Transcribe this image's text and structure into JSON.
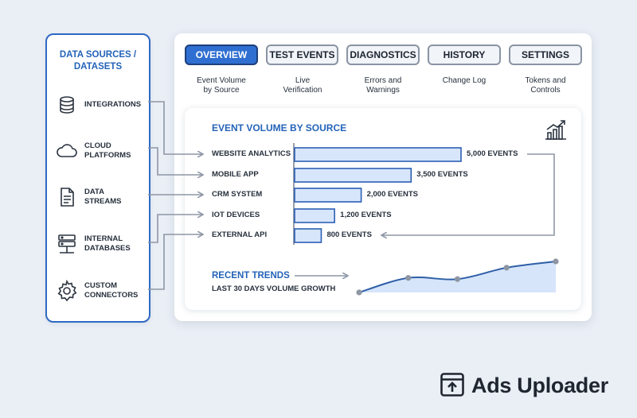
{
  "sources": {
    "title": "DATA SOURCES /\nDATASETS",
    "items": [
      {
        "label": "INTEGRATIONS",
        "icon": "database-icon"
      },
      {
        "label": "CLOUD\nPLATFORMS",
        "icon": "cloud-icon"
      },
      {
        "label": "DATA\nSTREAMS",
        "icon": "document-icon"
      },
      {
        "label": "INTERNAL\nDATABASES",
        "icon": "server-icon"
      },
      {
        "label": "CUSTOM\nCONNECTORS",
        "icon": "gear-icon"
      }
    ]
  },
  "tabs": [
    {
      "label": "OVERVIEW",
      "desc": "Event Volume\nby Source",
      "active": true
    },
    {
      "label": "TEST EVENTS",
      "desc": "Live\nVerification",
      "active": false
    },
    {
      "label": "DIAGNOSTICS",
      "desc": "Errors and\nWarnings",
      "active": false
    },
    {
      "label": "HISTORY",
      "desc": "Change Log",
      "active": false
    },
    {
      "label": "SETTINGS",
      "desc": "Tokens and\nControls",
      "active": false
    }
  ],
  "chart": {
    "title": "EVENT VOLUME BY SOURCE",
    "icon": "bar-chart-growth-icon"
  },
  "chart_data": [
    {
      "type": "bar",
      "orientation": "horizontal",
      "title": "EVENT VOLUME BY SOURCE",
      "categories": [
        "WEBSITE ANALYTICS",
        "MOBILE APP",
        "CRM SYSTEM",
        "IOT DEVICES",
        "EXTERNAL API"
      ],
      "values": [
        5000,
        3500,
        2000,
        1200,
        800
      ],
      "value_labels": [
        "5,000 EVENTS",
        "3,500 EVENTS",
        "2,000 EVENTS",
        "1,200 EVENTS",
        "800 EVENTS"
      ],
      "xlim": [
        0,
        5000
      ],
      "grid": false,
      "colors": {
        "bar_fill": "#d8e6fb",
        "bar_stroke": "#2c5fb4"
      }
    },
    {
      "type": "area",
      "title": "RECENT TRENDS",
      "subtitle": "LAST 30 DAYS VOLUME GROWTH",
      "x": [
        0,
        1,
        2,
        3,
        4
      ],
      "values": [
        0,
        0.47,
        0.43,
        0.8,
        1.0
      ],
      "grid": false,
      "colors": {
        "line": "#2e5fa8",
        "fill": "#d6e5fa",
        "point": "#8e96a3"
      }
    }
  ],
  "brand": {
    "name": "Ads Uploader",
    "icon": "upload-box-icon"
  },
  "colors": {
    "accent": "#2f6fd1",
    "panel_border": "#2f69c2",
    "connector": "#8e97a6",
    "background": "#eaeef5"
  }
}
